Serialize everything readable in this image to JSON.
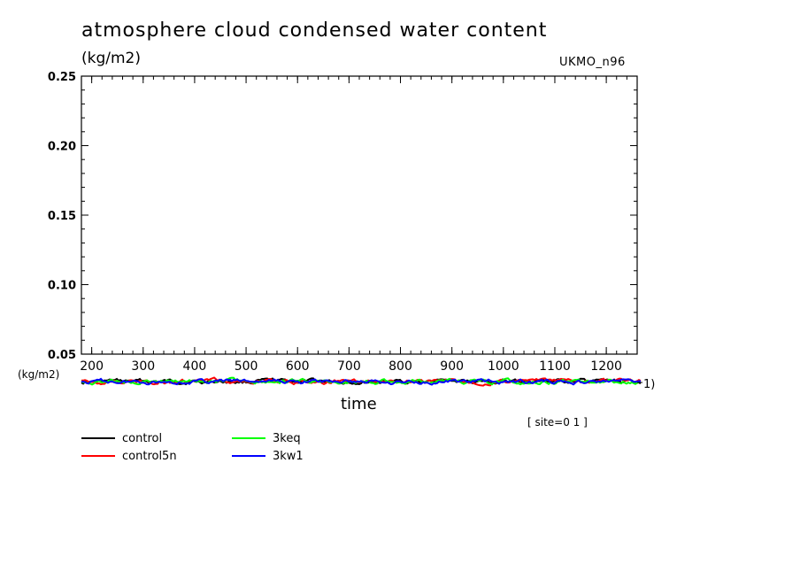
{
  "chart_data": {
    "type": "line",
    "title": "atmosphere cloud condensed water content",
    "ylabel": "(kg/m2)",
    "ylabel_repeat": "(kg/m2)",
    "xlabel": "time",
    "model_label": "UKMO_n96",
    "site_label": "[ site=0 1 ]",
    "axis_suffix": "1)",
    "xlim": [
      180,
      1260
    ],
    "ylim": [
      0.05,
      0.25
    ],
    "x_ticks": [
      "200",
      "300",
      "400",
      "500",
      "600",
      "700",
      "800",
      "900",
      "1000",
      "1100",
      "1200"
    ],
    "x_tick_values": [
      200,
      300,
      400,
      500,
      600,
      700,
      800,
      900,
      1000,
      1100,
      1200
    ],
    "y_ticks": [
      "0.05",
      "0.10",
      "0.15",
      "0.20",
      "0.25"
    ],
    "y_tick_values": [
      0.05,
      0.1,
      0.15,
      0.2,
      0.25
    ],
    "series": [
      {
        "name": "control",
        "color": "#000000"
      },
      {
        "name": "control5n",
        "color": "#ff0000"
      },
      {
        "name": "3keq",
        "color": "#00ff00"
      },
      {
        "name": "3kw1",
        "color": "#0000ff"
      }
    ],
    "grid": false,
    "legend_position": "bottom-left"
  }
}
